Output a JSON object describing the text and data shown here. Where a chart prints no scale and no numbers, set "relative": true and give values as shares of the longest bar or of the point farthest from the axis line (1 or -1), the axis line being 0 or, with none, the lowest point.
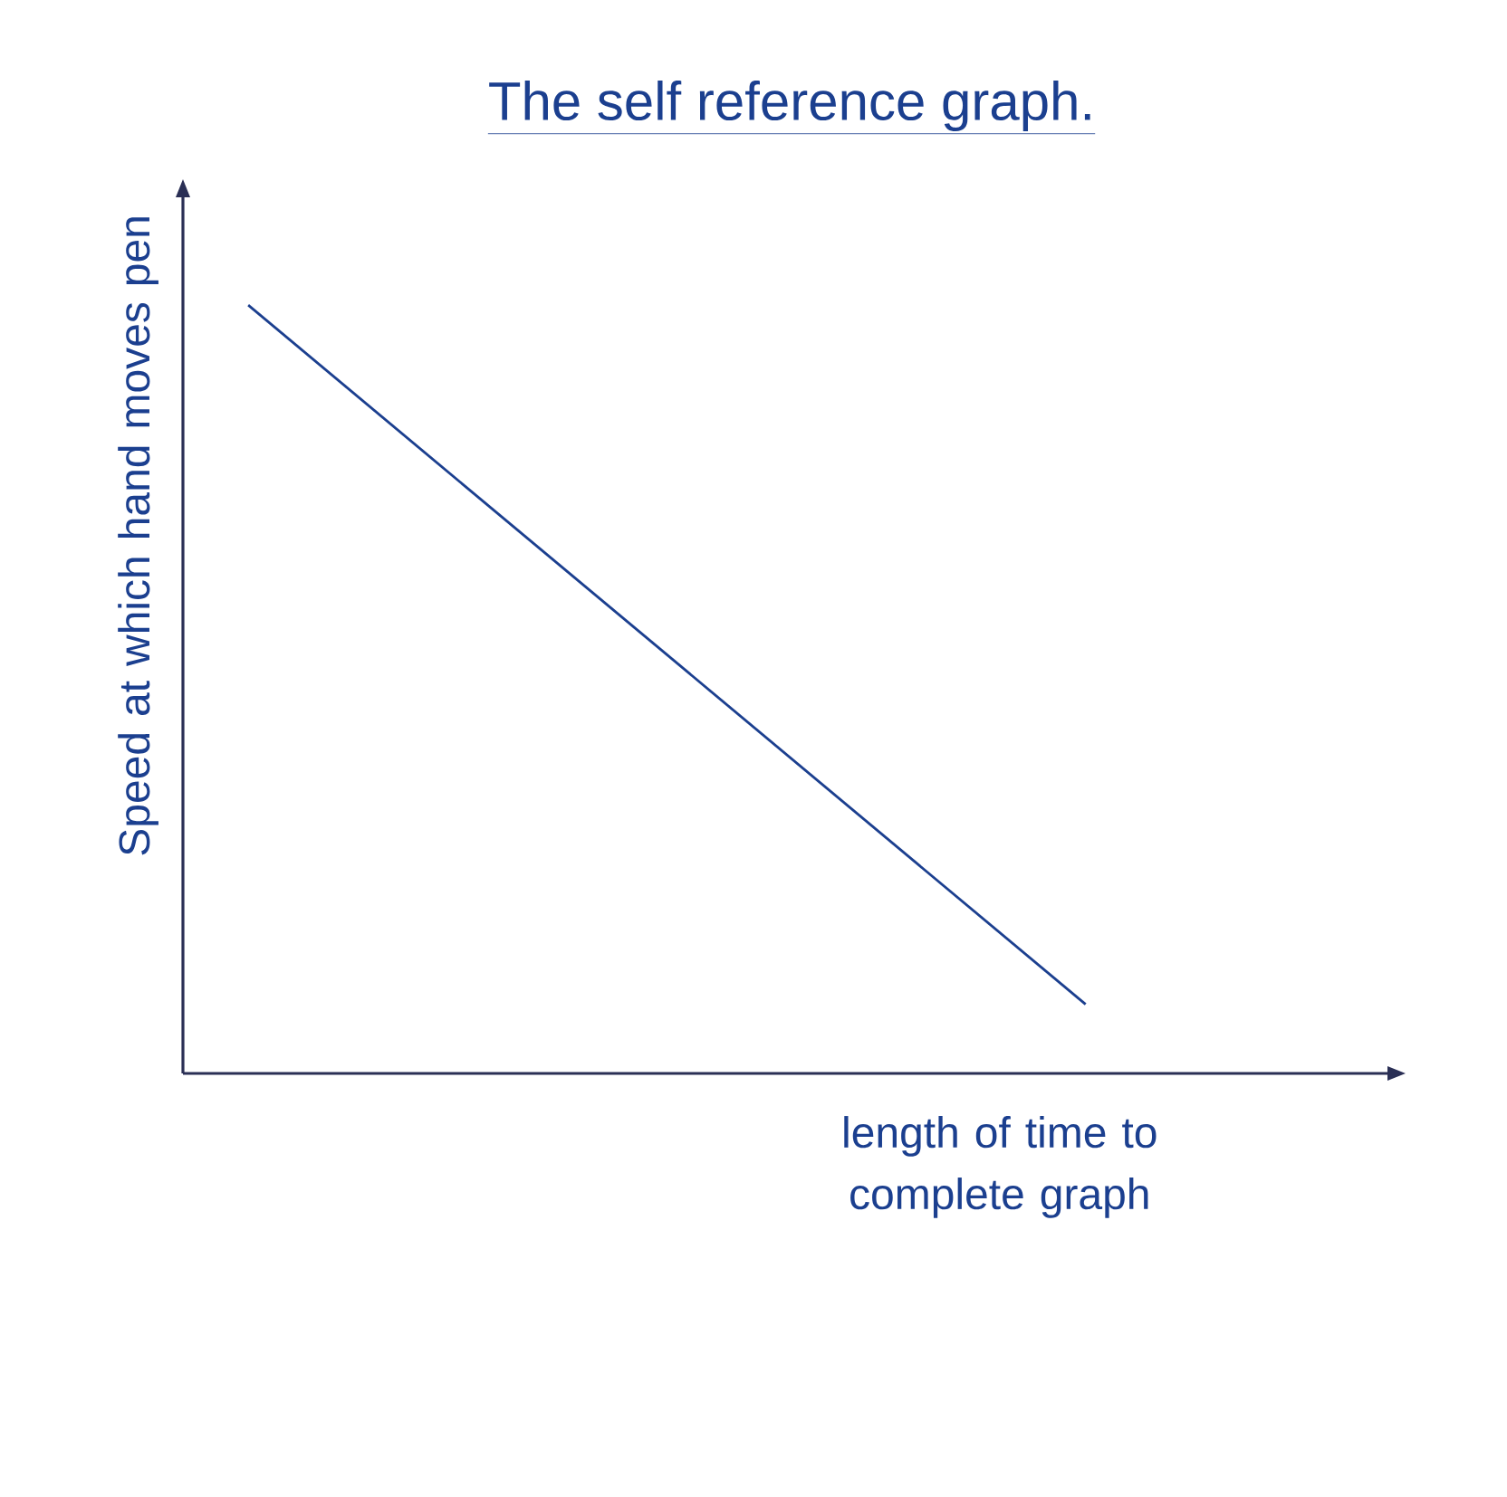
{
  "chart_data": {
    "type": "line",
    "title": "The self reference graph.",
    "xlabel": "length of time to complete graph",
    "ylabel": "Speed at which hand moves pen",
    "categories": [
      null,
      null
    ],
    "values": [
      1,
      0.09
    ],
    "color": "#1b3f8f",
    "relative": true,
    "marker": "none"
  }
}
